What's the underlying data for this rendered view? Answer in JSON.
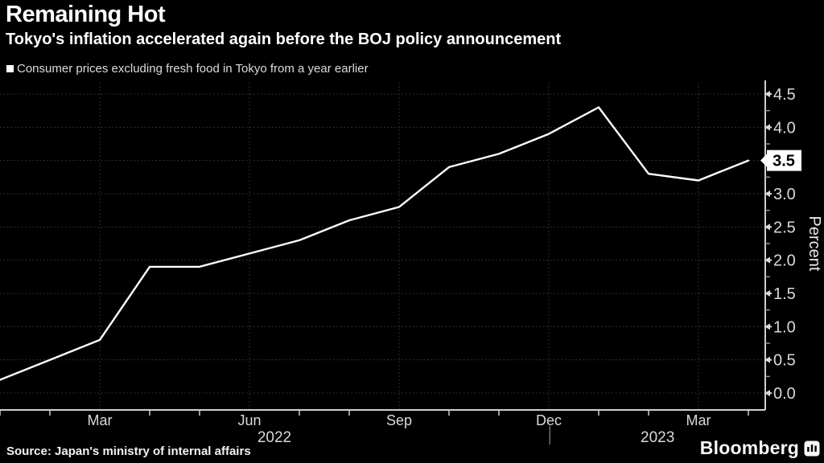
{
  "header": {
    "title": "Remaining Hot",
    "subtitle": "Tokyo's inflation accelerated again before the BOJ policy announcement",
    "legend": {
      "label": "Consumer prices excluding fresh food in Tokyo from a year earlier"
    }
  },
  "chart_data": {
    "type": "line",
    "title": "Remaining Hot",
    "subtitle": "Tokyo's inflation accelerated again before the BOJ policy announcement",
    "x": [
      "Jan 2022",
      "Feb 2022",
      "Mar 2022",
      "Apr 2022",
      "May 2022",
      "Jun 2022",
      "Jul 2022",
      "Aug 2022",
      "Sep 2022",
      "Oct 2022",
      "Nov 2022",
      "Dec 2022",
      "Jan 2023",
      "Feb 2023",
      "Mar 2023",
      "Apr 2023"
    ],
    "series": [
      {
        "name": "Consumer prices excluding fresh food in Tokyo from a year earlier",
        "values": [
          0.2,
          0.5,
          0.8,
          1.9,
          1.9,
          2.1,
          2.3,
          2.6,
          2.8,
          3.4,
          3.6,
          3.9,
          4.3,
          3.3,
          3.2,
          3.5
        ]
      }
    ],
    "ylabel": "Percent",
    "ylim": [
      0,
      4.5
    ],
    "ytick_step": 0.5,
    "ytick_labels": [
      "0.0",
      "0.5",
      "1.0",
      "1.5",
      "2.0",
      "2.5",
      "3.0",
      "3.5",
      "4.0",
      "4.5"
    ],
    "grid": "dotted",
    "legend_position": "top-left",
    "axis_side": "right",
    "x_major_ticks": [
      {
        "index": 2,
        "label": "Mar"
      },
      {
        "index": 5,
        "label": "Jun"
      },
      {
        "index": 8,
        "label": "Sep"
      },
      {
        "index": 11,
        "label": "Dec"
      },
      {
        "index": 14,
        "label": "Mar"
      }
    ],
    "year_labels": [
      {
        "label": "2022",
        "center_index": 5.5
      },
      {
        "label": "2023",
        "center_index": 13.18
      }
    ],
    "year_separator_index": 11.02,
    "last_value_label": "3.5",
    "colors": {
      "background": "#000000",
      "line": "#ffffff",
      "grid": "#3d3d3d",
      "axis": "#cfcfcf",
      "tick_label": "#d9d9d9",
      "minor_tick": "#9a9a9a",
      "year_separator": "#8a8a8a",
      "badge_bg": "#ffffff",
      "badge_text": "#000000",
      "axis_title": "#e8e8e8"
    }
  },
  "footer": {
    "source": "Source: Japan's ministry of internal affairs",
    "brand": "Bloomberg"
  }
}
